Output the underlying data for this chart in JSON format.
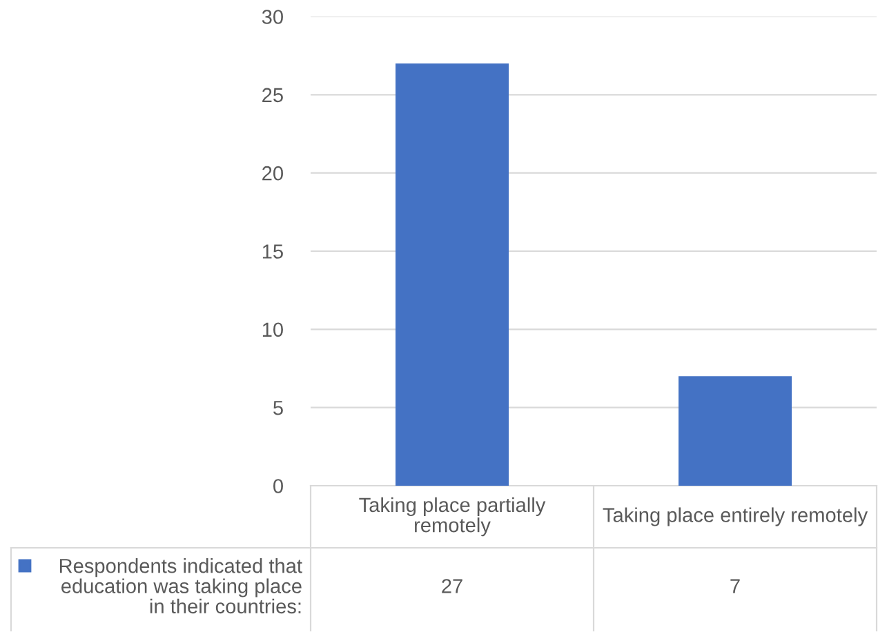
{
  "chart_data": {
    "type": "bar",
    "categories": [
      "Taking place partially remotely",
      "Taking place entirely remotely"
    ],
    "series": [
      {
        "name": "Respondents indicated that education was taking place in their countries:",
        "color": "#4472c4",
        "values": [
          27,
          7
        ]
      }
    ],
    "ylim": [
      0,
      30
    ],
    "yticks": [
      0,
      5,
      10,
      15,
      20,
      25,
      30
    ],
    "grid": "y",
    "data_labels": true
  }
}
